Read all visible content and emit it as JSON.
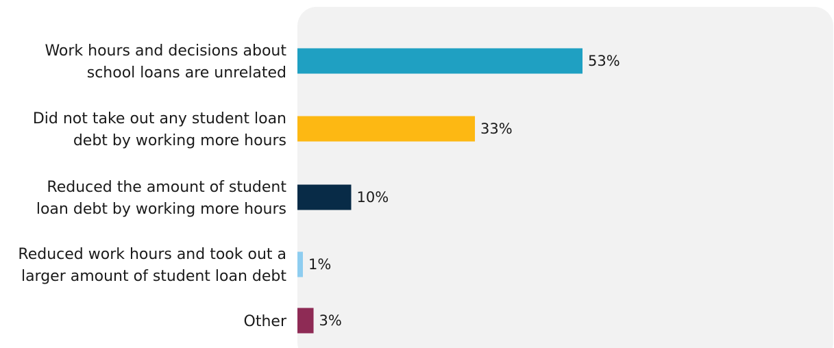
{
  "chart_data": {
    "type": "bar",
    "orientation": "horizontal",
    "categories": [
      [
        "Work hours and decisions about",
        "school loans are unrelated"
      ],
      [
        "Did not take out any student loan",
        "debt by working more hours"
      ],
      [
        "Reduced the amount of student",
        "loan debt by working more hours"
      ],
      [
        "Reduced work hours and took out a",
        "larger amount of student loan debt"
      ],
      [
        "Other"
      ]
    ],
    "values": [
      53,
      33,
      10,
      1,
      3
    ],
    "value_labels": [
      "53%",
      "33%",
      "10%",
      "1%",
      "3%"
    ],
    "colors": [
      "#1fa0c2",
      "#fdb813",
      "#082b47",
      "#8ecdf0",
      "#8e2b55"
    ],
    "unit": "%",
    "xlim": [
      0,
      100
    ],
    "plot_background": "#f2f2f2",
    "grid": false,
    "legend": "none"
  }
}
